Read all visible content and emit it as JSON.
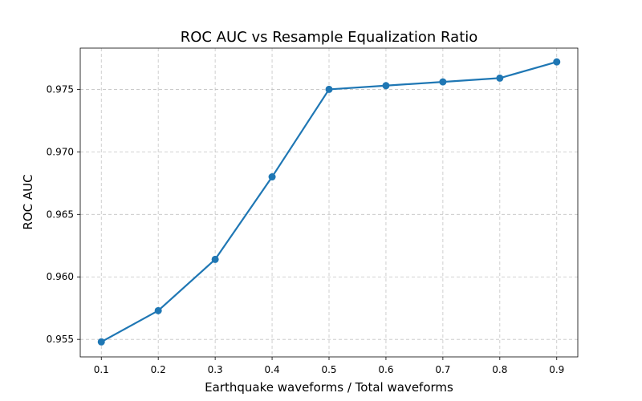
{
  "chart_data": {
    "type": "line",
    "title": "ROC AUC vs Resample Equalization Ratio",
    "xlabel": "Earthquake waveforms / Total waveforms",
    "ylabel": "ROC AUC",
    "x": [
      0.1,
      0.2,
      0.3,
      0.4,
      0.5,
      0.6,
      0.7,
      0.8,
      0.9
    ],
    "series": [
      {
        "values": [
          0.9548,
          0.9573,
          0.9614,
          0.968,
          0.975,
          0.9753,
          0.9756,
          0.9759,
          0.9772
        ],
        "color": "#1f77b4"
      }
    ],
    "xlim": [
      0.063,
      0.937
    ],
    "ylim": [
      0.9536,
      0.9783
    ],
    "xticks": [
      0.1,
      0.2,
      0.3,
      0.4,
      0.5,
      0.6,
      0.7,
      0.8,
      0.9
    ],
    "xtick_labels": [
      "0.1",
      "0.2",
      "0.3",
      "0.4",
      "0.5",
      "0.6",
      "0.7",
      "0.8",
      "0.9"
    ],
    "yticks": [
      0.955,
      0.96,
      0.965,
      0.97,
      0.975
    ],
    "ytick_labels": [
      "0.955",
      "0.960",
      "0.965",
      "0.970",
      "0.975"
    ],
    "grid": true,
    "grid_style": "dashed",
    "markers": "circle"
  }
}
